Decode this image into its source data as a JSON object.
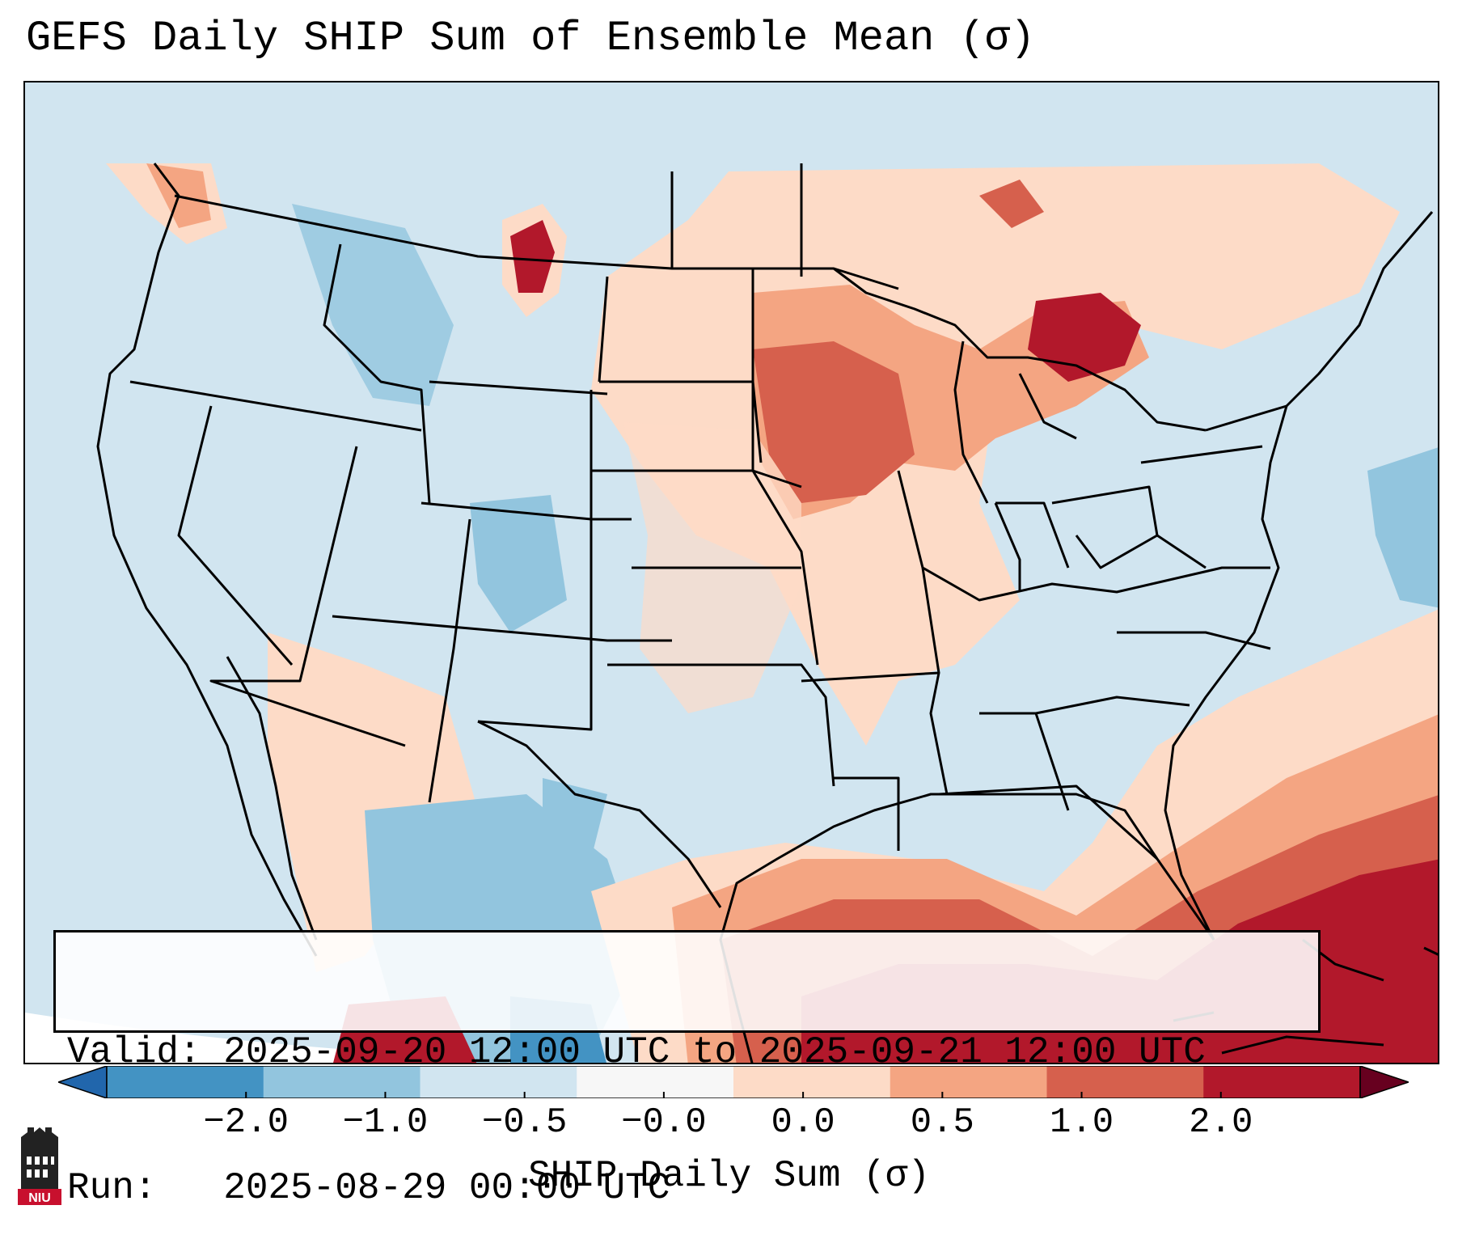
{
  "title": "GEFS Daily SHIP Sum of Ensemble Mean (σ)",
  "info": {
    "valid_label": "Valid:",
    "valid_value": "2025-09-20 12:00 UTC to 2025-09-21 12:00 UTC",
    "run_label": "Run:",
    "run_value": "2025-08-29 00:00 UTC"
  },
  "colorbar": {
    "label": "SHIP Daily Sum (σ)",
    "ticks": [
      "−2.0",
      "−1.0",
      "−0.5",
      "−0.0",
      "0.0",
      "0.5",
      "1.0",
      "2.0"
    ],
    "colors": [
      "#4393c3",
      "#92c5de",
      "#d1e5f0",
      "#f7f7f7",
      "#fddbc7",
      "#f4a582",
      "#d6604d",
      "#b2182b"
    ],
    "under_color": "#2166ac",
    "over_color": "#67001f"
  },
  "map_colors": {
    "ocean_background": "#d1e5f0",
    "state_lines": "#000000"
  },
  "logo": {
    "text": "NIU"
  }
}
